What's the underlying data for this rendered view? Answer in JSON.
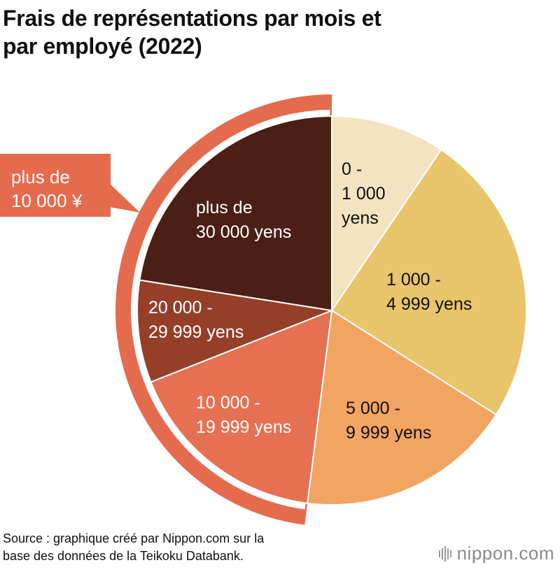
{
  "title": {
    "line1": "Frais de représentations par mois et",
    "line2": "par employé (2022)"
  },
  "chart_data": {
    "type": "pie",
    "title": "Frais de représentations par mois et par employé (2022)",
    "unit": "%",
    "start": "12 o'clock, clockwise",
    "slices": [
      {
        "name": "0 - 1 000 yens",
        "value": 9.5,
        "color": "#F3E3C0",
        "text_color": "#111111",
        "label_lines": [
          "0 -",
          "1 000",
          "yens"
        ]
      },
      {
        "name": "1 000 - 4 999 yens",
        "value": 24.5,
        "color": "#E8C46A",
        "text_color": "#111111",
        "label_lines": [
          "1 000 -",
          "4 999 yens"
        ]
      },
      {
        "name": "5 000 - 9 999 yens",
        "value": 18.0,
        "color": "#F2A462",
        "text_color": "#111111",
        "label_lines": [
          "5 000 -",
          "9 999 yens"
        ]
      },
      {
        "name": "10 000 - 19 999 yens",
        "value": 17.0,
        "color": "#E67052",
        "text_color": "#ffffff",
        "label_lines": [
          "10 000 -",
          "19 999 yens"
        ]
      },
      {
        "name": "20 000 - 29 999 yens",
        "value": 8.5,
        "color": "#953F28",
        "text_color": "#ffffff",
        "label_lines": [
          "20 000 -",
          "29 999 yens"
        ]
      },
      {
        "name": "plus de 30 000 yens",
        "value": 22.5,
        "color": "#4B1F15",
        "text_color": "#ffffff",
        "label_lines": [
          "plus de",
          "30 000 yens"
        ]
      }
    ],
    "grouping": {
      "label_lines": [
        "plus de",
        "10 000 ¥"
      ],
      "slice_names": [
        "10 000 - 19 999 yens",
        "20 000 - 29 999 yens",
        "plus de 30 000 yens"
      ],
      "color": "#E46B4E"
    }
  },
  "source": {
    "line1": "Source : graphique créé par Nippon.com sur la",
    "line2": "base des données de la Teikoku Databank."
  },
  "logo": {
    "text": "nippon.com"
  }
}
